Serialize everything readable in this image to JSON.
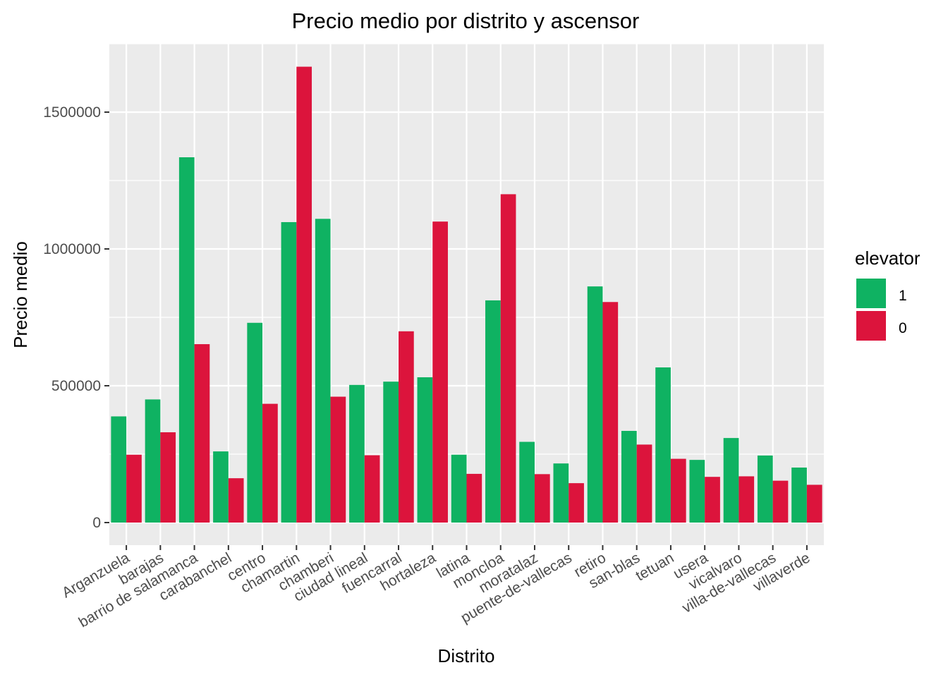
{
  "chart_data": {
    "type": "bar",
    "title": "Precio medio por distrito y ascensor",
    "xlabel": "Distrito",
    "ylabel": "Precio medio",
    "ylim": [
      -75000,
      1745000
    ],
    "yticks": [
      0,
      500000,
      1000000,
      1500000
    ],
    "ytick_labels": [
      "0",
      "500000",
      "1000000",
      "1500000"
    ],
    "grid": true,
    "legend": {
      "title": "elevator",
      "position": "right"
    },
    "categories": [
      "Arganzuela",
      "barajas",
      "barrio de salamanca",
      "carabanchel",
      "centro",
      "chamartin",
      "chamberi",
      "ciudad lineal",
      "fuencarral",
      "hortaleza",
      "latina",
      "moncloa",
      "moratalaz",
      "puente-de-vallecas",
      "retiro",
      "san-blas",
      "tetuan",
      "usera",
      "vicalvaro",
      "villa-de-vallecas",
      "villaverde"
    ],
    "series": [
      {
        "name": "1",
        "color": "#0fb262",
        "values": [
          388000,
          450000,
          1335000,
          260000,
          730000,
          1098000,
          1110000,
          503000,
          515000,
          531000,
          248000,
          812000,
          295000,
          216000,
          863000,
          335000,
          567000,
          229000,
          309000,
          245000,
          201000
        ]
      },
      {
        "name": "0",
        "color": "#dc143c",
        "values": [
          248000,
          330000,
          652000,
          162000,
          434000,
          1666000,
          460000,
          246000,
          699000,
          1100000,
          178000,
          1200000,
          177000,
          144000,
          806000,
          285000,
          233000,
          167000,
          169000,
          153000,
          138000
        ]
      }
    ]
  }
}
